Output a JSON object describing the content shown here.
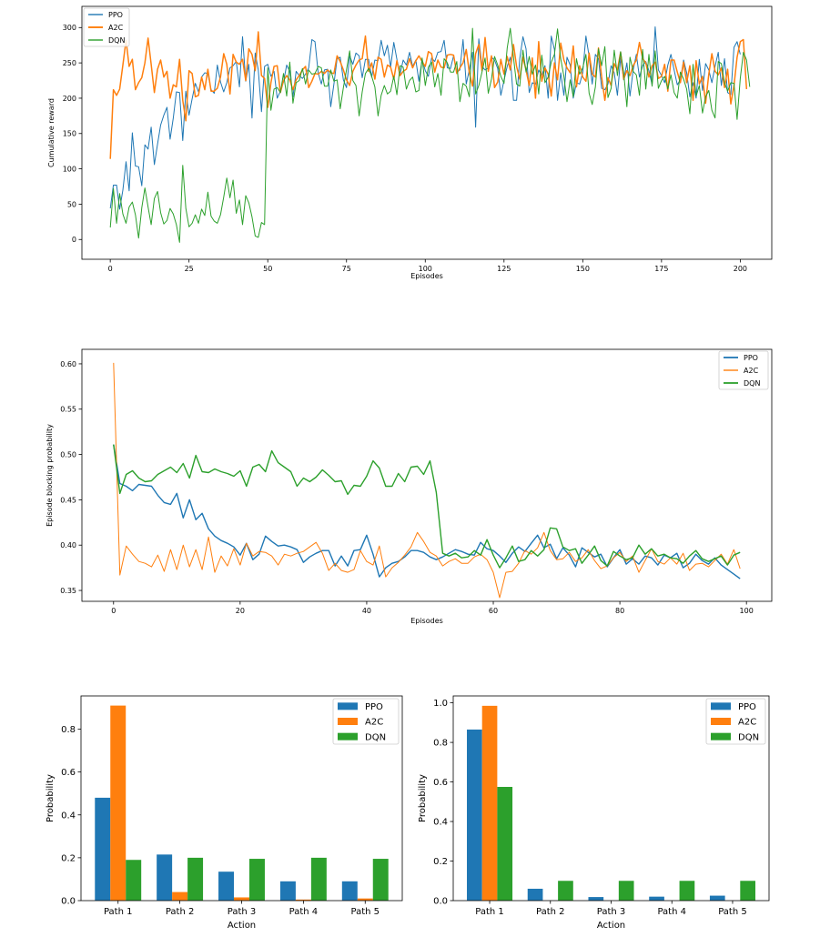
{
  "chart_data": [
    {
      "type": "line",
      "xlabel": "Episodes",
      "ylabel": "Cumulative reward",
      "xlim": [
        -9,
        210
      ],
      "ylim": [
        -28,
        330
      ],
      "xticks": [
        0,
        25,
        50,
        75,
        100,
        125,
        150,
        175,
        200
      ],
      "yticks": [
        0,
        50,
        100,
        150,
        200,
        250,
        300
      ],
      "legend": "top-left",
      "series": [
        {
          "name": "PPO",
          "color": "#1f77b4",
          "values": [
            44,
            77,
            77,
            43,
            70,
            110,
            69,
            151,
            104,
            103,
            76,
            134,
            128,
            159,
            106,
            135,
            162,
            176,
            187,
            142,
            172,
            209,
            208,
            140,
            210,
            176,
            199,
            221,
            209,
            230,
            236,
            235,
            212,
            207,
            247,
            223,
            209,
            222,
            243,
            246,
            252,
            216,
            287,
            224,
            248,
            172,
            264,
            240,
            181,
            245,
            248,
            231,
            238,
            200,
            210,
            223,
            247,
            238,
            202,
            238,
            232,
            228,
            234,
            243,
            283,
            280,
            236,
            220,
            240,
            241,
            188,
            220,
            256,
            258,
            226,
            215,
            260,
            248,
            264,
            260,
            229,
            255,
            255,
            230,
            254,
            253,
            282,
            260,
            275,
            244,
            279,
            255,
            234,
            254,
            247,
            265,
            245,
            254,
            224,
            255,
            239,
            231,
            257,
            252,
            265,
            266,
            282,
            243,
            242,
            260,
            237,
            240,
            283,
            220,
            240,
            265,
            159,
            284,
            245,
            240,
            243,
            258,
            254,
            242,
            204,
            225,
            245,
            258,
            197,
            197,
            256,
            287,
            270,
            208,
            222,
            220,
            240,
            232,
            246,
            200,
            288,
            269,
            197,
            236,
            204,
            258,
            247,
            200,
            222,
            220,
            236,
            288,
            259,
            220,
            262,
            256,
            214,
            212,
            220,
            246,
            236,
            204,
            257,
            226,
            250,
            203,
            240,
            262,
            230,
            246,
            252,
            239,
            219,
            301,
            240,
            232,
            222,
            247,
            262,
            240,
            219,
            226,
            254,
            236,
            202,
            222,
            200,
            255,
            211,
            249,
            240,
            222,
            245,
            265,
            218,
            256,
            208,
            205,
            272,
            280,
            262
          ]
        },
        {
          "name": "A2C",
          "color": "#ff7f0e",
          "values": [
            114,
            212,
            204,
            213,
            247,
            282,
            245,
            255,
            212,
            222,
            229,
            250,
            285,
            248,
            208,
            241,
            254,
            230,
            238,
            200,
            219,
            216,
            255,
            197,
            168,
            239,
            235,
            202,
            204,
            230,
            212,
            241,
            210,
            210,
            214,
            230,
            263,
            248,
            206,
            262,
            251,
            248,
            255,
            225,
            270,
            262,
            239,
            294,
            232,
            228,
            187,
            222,
            245,
            246,
            208,
            225,
            232,
            226,
            212,
            226,
            232,
            240,
            245,
            215,
            224,
            235,
            234,
            238,
            235,
            240,
            236,
            235,
            260,
            252,
            240,
            226,
            218,
            238,
            247,
            254,
            256,
            288,
            238,
            250,
            227,
            258,
            255,
            230,
            247,
            244,
            227,
            253,
            232,
            238,
            241,
            256,
            243,
            253,
            260,
            252,
            245,
            266,
            263,
            237,
            254,
            244,
            243,
            261,
            262,
            261,
            235,
            243,
            250,
            269,
            236,
            217,
            263,
            276,
            239,
            286,
            238,
            260,
            215,
            223,
            255,
            234,
            259,
            240,
            276,
            245,
            227,
            258,
            240,
            218,
            257,
            200,
            280,
            224,
            243,
            234,
            203,
            250,
            226,
            278,
            254,
            243,
            236,
            274,
            216,
            246,
            230,
            224,
            264,
            234,
            230,
            271,
            230,
            197,
            229,
            218,
            249,
            240,
            265,
            227,
            239,
            232,
            246,
            254,
            279,
            256,
            250,
            230,
            246,
            251,
            228,
            231,
            248,
            210,
            254,
            254,
            237,
            222,
            251,
            222,
            246,
            197,
            253,
            220,
            231,
            193,
            234,
            263,
            238,
            233,
            243,
            215,
            241,
            192,
            218,
            258,
            280,
            283,
            213
          ]
        },
        {
          "name": "DQN",
          "color": "#2ca02c",
          "values": [
            17,
            72,
            23,
            65,
            36,
            23,
            46,
            53,
            35,
            2,
            45,
            73,
            46,
            21,
            58,
            68,
            38,
            22,
            27,
            44,
            36,
            21,
            -4,
            105,
            44,
            18,
            23,
            35,
            23,
            43,
            34,
            67,
            33,
            26,
            23,
            35,
            60,
            87,
            59,
            84,
            37,
            56,
            21,
            62,
            52,
            32,
            5,
            3,
            24,
            21,
            243,
            183,
            213,
            215,
            208,
            235,
            203,
            251,
            193,
            222,
            225,
            242,
            220,
            240,
            234,
            235,
            245,
            243,
            217,
            217,
            240,
            224,
            226,
            185,
            215,
            240,
            267,
            225,
            218,
            175,
            209,
            235,
            242,
            231,
            216,
            175,
            204,
            218,
            206,
            210,
            231,
            205,
            246,
            244,
            213,
            225,
            230,
            209,
            211,
            257,
            218,
            244,
            251,
            216,
            235,
            204,
            256,
            250,
            237,
            237,
            252,
            195,
            221,
            217,
            202,
            299,
            206,
            218,
            237,
            257,
            207,
            227,
            259,
            247,
            231,
            221,
            271,
            299,
            258,
            220,
            217,
            268,
            237,
            259,
            234,
            247,
            206,
            261,
            222,
            230,
            251,
            262,
            298,
            256,
            231,
            195,
            226,
            202,
            256,
            234,
            243,
            262,
            207,
            191,
            216,
            270,
            246,
            273,
            201,
            214,
            268,
            232,
            266,
            236,
            188,
            258,
            238,
            233,
            204,
            269,
            213,
            262,
            217,
            267,
            214,
            225,
            231,
            213,
            233,
            208,
            200,
            237,
            227,
            213,
            178,
            248,
            203,
            218,
            179,
            202,
            211,
            183,
            172,
            252,
            249,
            222,
            210,
            222,
            221,
            170,
            228,
            265,
            254,
            216
          ]
        }
      ]
    },
    {
      "type": "line",
      "xlabel": "Episodes",
      "ylabel": "Episode blocking probability",
      "xlim": [
        -5,
        104
      ],
      "ylim": [
        0.338,
        0.616
      ],
      "xticks": [
        0,
        20,
        40,
        60,
        80,
        100
      ],
      "yticks": [
        0.35,
        0.4,
        0.45,
        0.5,
        0.55,
        0.6
      ],
      "legend": "top-right",
      "series": [
        {
          "name": "PPO",
          "color": "#1f77b4",
          "values": [
            0.511,
            0.468,
            0.465,
            0.46,
            0.467,
            0.466,
            0.465,
            0.455,
            0.447,
            0.445,
            0.457,
            0.43,
            0.45,
            0.428,
            0.435,
            0.418,
            0.41,
            0.405,
            0.402,
            0.398,
            0.389,
            0.402,
            0.384,
            0.39,
            0.41,
            0.404,
            0.399,
            0.4,
            0.398,
            0.395,
            0.381,
            0.387,
            0.391,
            0.394,
            0.394,
            0.377,
            0.388,
            0.377,
            0.394,
            0.395,
            0.411,
            0.39,
            0.365,
            0.375,
            0.38,
            0.382,
            0.387,
            0.394,
            0.394,
            0.392,
            0.387,
            0.384,
            0.387,
            0.391,
            0.395,
            0.393,
            0.39,
            0.389,
            0.403,
            0.396,
            0.394,
            0.388,
            0.381,
            0.391,
            0.398,
            0.393,
            0.402,
            0.411,
            0.397,
            0.401,
            0.385,
            0.397,
            0.389,
            0.376,
            0.397,
            0.392,
            0.387,
            0.39,
            0.376,
            0.386,
            0.395,
            0.379,
            0.385,
            0.379,
            0.388,
            0.386,
            0.378,
            0.389,
            0.386,
            0.391,
            0.375,
            0.38,
            0.39,
            0.383,
            0.379,
            0.386,
            0.378,
            0.373,
            0.368,
            0.363
          ]
        },
        {
          "name": "A2C",
          "color": "#ff7f0e",
          "values": [
            0.601,
            0.367,
            0.399,
            0.39,
            0.382,
            0.38,
            0.376,
            0.389,
            0.371,
            0.395,
            0.373,
            0.4,
            0.376,
            0.395,
            0.373,
            0.409,
            0.37,
            0.388,
            0.377,
            0.396,
            0.378,
            0.402,
            0.388,
            0.393,
            0.392,
            0.388,
            0.378,
            0.39,
            0.388,
            0.391,
            0.393,
            0.398,
            0.403,
            0.391,
            0.372,
            0.38,
            0.372,
            0.37,
            0.373,
            0.394,
            0.382,
            0.378,
            0.399,
            0.365,
            0.375,
            0.381,
            0.389,
            0.398,
            0.414,
            0.404,
            0.392,
            0.388,
            0.377,
            0.382,
            0.385,
            0.38,
            0.38,
            0.387,
            0.39,
            0.384,
            0.37,
            0.342,
            0.37,
            0.371,
            0.38,
            0.394,
            0.39,
            0.397,
            0.414,
            0.394,
            0.384,
            0.385,
            0.392,
            0.382,
            0.386,
            0.395,
            0.383,
            0.374,
            0.377,
            0.386,
            0.392,
            0.382,
            0.388,
            0.37,
            0.383,
            0.396,
            0.382,
            0.379,
            0.386,
            0.379,
            0.391,
            0.372,
            0.379,
            0.38,
            0.376,
            0.383,
            0.39,
            0.379,
            0.395,
            0.374
          ]
        },
        {
          "name": "DQN",
          "color": "#2ca02c",
          "values": [
            0.511,
            0.457,
            0.478,
            0.482,
            0.474,
            0.47,
            0.471,
            0.478,
            0.482,
            0.486,
            0.48,
            0.49,
            0.474,
            0.499,
            0.481,
            0.48,
            0.484,
            0.481,
            0.479,
            0.476,
            0.482,
            0.465,
            0.486,
            0.489,
            0.481,
            0.504,
            0.491,
            0.486,
            0.481,
            0.465,
            0.474,
            0.47,
            0.475,
            0.483,
            0.477,
            0.47,
            0.471,
            0.456,
            0.466,
            0.465,
            0.476,
            0.493,
            0.485,
            0.465,
            0.465,
            0.479,
            0.47,
            0.486,
            0.487,
            0.478,
            0.493,
            0.458,
            0.391,
            0.388,
            0.391,
            0.386,
            0.387,
            0.394,
            0.389,
            0.406,
            0.389,
            0.375,
            0.386,
            0.399,
            0.382,
            0.384,
            0.394,
            0.388,
            0.395,
            0.419,
            0.418,
            0.398,
            0.394,
            0.396,
            0.38,
            0.389,
            0.399,
            0.383,
            0.377,
            0.393,
            0.388,
            0.384,
            0.386,
            0.4,
            0.39,
            0.396,
            0.388,
            0.39,
            0.386,
            0.385,
            0.38,
            0.388,
            0.394,
            0.385,
            0.382,
            0.385,
            0.388,
            0.378,
            0.389,
            0.392
          ]
        }
      ]
    },
    {
      "type": "bar",
      "xlabel": "Action",
      "ylabel": "Probability",
      "ylim": [
        0,
        0.955
      ],
      "yticks": [
        0,
        0.2,
        0.4,
        0.6,
        0.8
      ],
      "legend": "top-right",
      "categories": [
        "Path 1",
        "Path 2",
        "Path 3",
        "Path 4",
        "Path 5"
      ],
      "series": [
        {
          "name": "PPO",
          "color": "#1f77b4",
          "values": [
            0.48,
            0.215,
            0.135,
            0.09,
            0.09
          ]
        },
        {
          "name": "A2C",
          "color": "#ff7f0e",
          "values": [
            0.91,
            0.04,
            0.015,
            0.005,
            0.01
          ]
        },
        {
          "name": "DQN",
          "color": "#2ca02c",
          "values": [
            0.19,
            0.2,
            0.195,
            0.2,
            0.195
          ]
        }
      ]
    },
    {
      "type": "bar",
      "xlabel": "Action",
      "ylabel": "Probability",
      "ylim": [
        0,
        1.035
      ],
      "yticks": [
        0,
        0.2,
        0.4,
        0.6,
        0.8,
        1.0
      ],
      "legend": "top-right",
      "categories": [
        "Path 1",
        "Path 2",
        "Path 3",
        "Path 4",
        "Path 5"
      ],
      "series": [
        {
          "name": "PPO",
          "color": "#1f77b4",
          "values": [
            0.865,
            0.06,
            0.018,
            0.02,
            0.025
          ]
        },
        {
          "name": "A2C",
          "color": "#ff7f0e",
          "values": [
            0.985,
            0.0,
            0.0,
            0.0,
            0.0
          ]
        },
        {
          "name": "DQN",
          "color": "#2ca02c",
          "values": [
            0.575,
            0.1,
            0.1,
            0.1,
            0.1
          ]
        }
      ]
    }
  ]
}
